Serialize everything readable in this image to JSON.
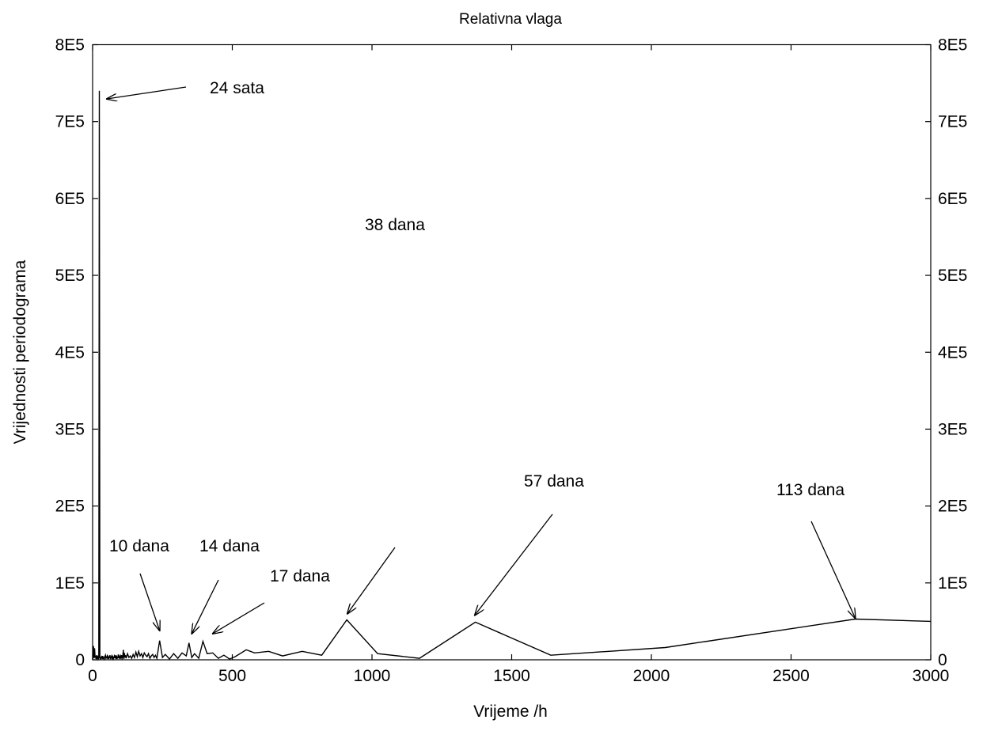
{
  "chart_data": {
    "type": "line",
    "title": "Relativna vlaga",
    "xlabel": "Vrijeme /h",
    "ylabel": "Vrijednosti periodograma",
    "xlim": [
      0,
      3000
    ],
    "ylim": [
      0,
      800000
    ],
    "x_ticks": [
      0,
      500,
      1000,
      1500,
      2000,
      2500,
      3000
    ],
    "x_tick_labels": [
      "0",
      "500",
      "1000",
      "1500",
      "2000",
      "2500",
      "3000"
    ],
    "y_ticks": [
      0,
      100000,
      200000,
      300000,
      400000,
      500000,
      600000,
      700000,
      800000
    ],
    "y_tick_labels": [
      "0",
      "1E5",
      "2E5",
      "3E5",
      "4E5",
      "5E5",
      "6E5",
      "7E5",
      "8E5"
    ],
    "right_axis_labels": true,
    "grid": false,
    "legend": "none",
    "color": "#000000",
    "series": [
      {
        "x": [
          0,
          3,
          5,
          7,
          9,
          11,
          12,
          14,
          16,
          18,
          20,
          22,
          24,
          26,
          28,
          30,
          32,
          34,
          36,
          38,
          40,
          42,
          44,
          46,
          48,
          50,
          52,
          54,
          56,
          58,
          60,
          62,
          64,
          66,
          68,
          70,
          72,
          74,
          76,
          78,
          80,
          82,
          84,
          86,
          88,
          90,
          92,
          94,
          96,
          98,
          100,
          102,
          104,
          106,
          108,
          110,
          112,
          114,
          116,
          118,
          120,
          125,
          130,
          135,
          140,
          145,
          150,
          155,
          160,
          165,
          170,
          175,
          180,
          185,
          190,
          195,
          200,
          205,
          210,
          215,
          220,
          225,
          230,
          240,
          250,
          260,
          275,
          290,
          305,
          320,
          335,
          345,
          355,
          365,
          380,
          395,
          410,
          430,
          450,
          470,
          490,
          510,
          550,
          580,
          630,
          680,
          750,
          820,
          910,
          1020,
          1170,
          1370,
          1640,
          2050,
          2730,
          3000
        ],
        "y": [
          0,
          18000,
          2000,
          15000,
          3000,
          5000,
          1000,
          6000,
          2000,
          4000,
          1000,
          3000,
          740000,
          2000,
          1000,
          3000,
          4000,
          1000,
          5000,
          2000,
          3000,
          1000,
          4000,
          6000,
          2000,
          3000,
          5000,
          1000,
          4000,
          2000,
          3000,
          6000,
          1000,
          3000,
          5000,
          2000,
          4000,
          1000,
          3000,
          5000,
          2000,
          6000,
          1000,
          4000,
          2000,
          3000,
          7000,
          2000,
          4000,
          1000,
          5000,
          3000,
          6000,
          2000,
          4000,
          13000,
          1000,
          9000,
          3000,
          6000,
          2000,
          8000,
          3000,
          5000,
          2000,
          7000,
          3000,
          10000,
          4000,
          11000,
          5000,
          8000,
          3000,
          9000,
          6000,
          4000,
          8000,
          2000,
          5000,
          7000,
          3000,
          6000,
          2000,
          25000,
          3000,
          7000,
          1000,
          8000,
          2000,
          9000,
          5000,
          22000,
          3000,
          8000,
          2000,
          24000,
          8000,
          9000,
          2000,
          6000,
          1000,
          4000,
          13000,
          9000,
          11000,
          5000,
          11000,
          6000,
          52000,
          8000,
          2000,
          49000,
          6000,
          16000,
          53000,
          50000
        ]
      }
    ],
    "annotations": [
      {
        "text": "24 sata",
        "x": 24,
        "y": 735000
      },
      {
        "text": "10 dana",
        "x": 240,
        "y": 38000
      },
      {
        "text": "14 dana",
        "x": 355,
        "y": 34000
      },
      {
        "text": "17 dana",
        "x": 430,
        "y": 34000
      },
      {
        "text": "38 dana",
        "x": 912,
        "y": 60000
      },
      {
        "text": "57 dana",
        "x": 1368,
        "y": 58000
      },
      {
        "text": "113 dana",
        "x": 2730,
        "y": 54000
      }
    ]
  }
}
